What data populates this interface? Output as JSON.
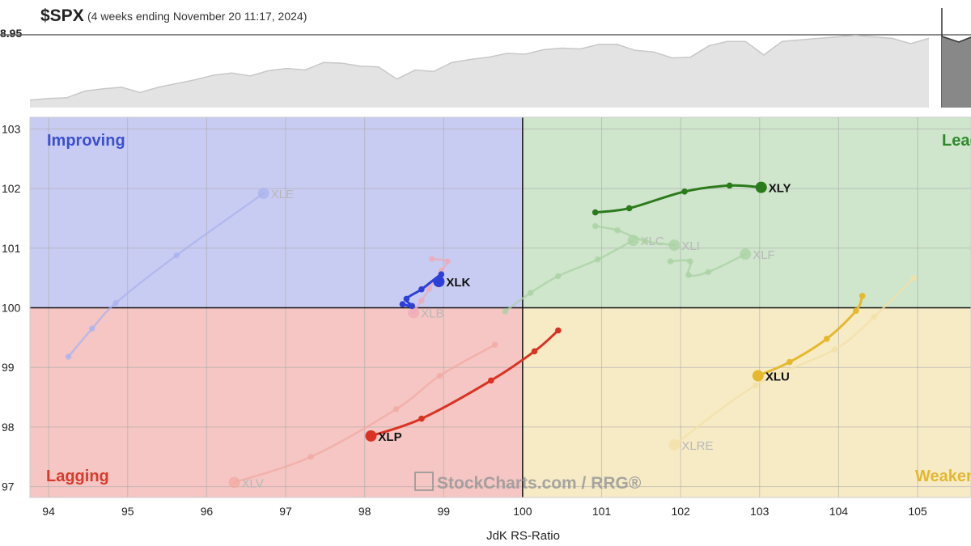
{
  "header": {
    "symbol": "$SPX",
    "period": "(4 weeks ending November 20 11:17, 2024)",
    "price_label": "8.95"
  },
  "watermark": {
    "text": "StockCharts.com / RRG®"
  },
  "colors": {
    "improving_bg": "#c9ccf2",
    "leading_bg": "#cfe5cc",
    "lagging_bg": "#f5c6c3",
    "weakening_bg": "#f7ebc6",
    "improving_label": "#3a4fd1",
    "leading_label": "#2e8a2a",
    "lagging_label": "#d93a2b",
    "weakening_label": "#e2b732"
  },
  "chart_data": [
    {
      "type": "area",
      "title": "$SPX",
      "subtitle": "(4 weeks ending November 20 11:17, 2024)",
      "price_label": "8.95",
      "values": [
        0.1,
        0.12,
        0.13,
        0.22,
        0.25,
        0.27,
        0.2,
        0.27,
        0.32,
        0.37,
        0.43,
        0.46,
        0.42,
        0.49,
        0.52,
        0.5,
        0.6,
        0.59,
        0.55,
        0.54,
        0.38,
        0.5,
        0.48,
        0.6,
        0.64,
        0.67,
        0.72,
        0.71,
        0.77,
        0.79,
        0.78,
        0.84,
        0.84,
        0.76,
        0.74,
        0.66,
        0.67,
        0.82,
        0.88,
        0.88,
        0.7,
        0.88,
        0.9,
        0.92,
        0.94,
        0.96,
        0.94,
        0.92,
        0.85,
        0.92
      ],
      "bar_value": 0.9
    },
    {
      "type": "scatter",
      "xlabel": "JdK RS-Ratio",
      "ylabel": "",
      "xlim": [
        93.7,
        105.7
      ],
      "ylim": [
        96.8,
        103.3
      ],
      "xticks": [
        94,
        95,
        96,
        97,
        98,
        99,
        100,
        101,
        102,
        103,
        104,
        105
      ],
      "yticks": [
        97,
        98,
        99,
        100,
        101,
        102,
        103
      ],
      "quadrants": {
        "improving": "Improving",
        "leading": "Leading",
        "lagging": "Lagging",
        "weakening": "Weakening"
      },
      "series": [
        {
          "name": "XLE",
          "color": "#aab3ee",
          "faded": true,
          "points": [
            [
              94.25,
              99.18
            ],
            [
              94.55,
              99.65
            ],
            [
              94.85,
              100.08
            ],
            [
              95.62,
              100.88
            ],
            [
              96.72,
              101.92
            ]
          ]
        },
        {
          "name": "XLK",
          "color": "#2d3fd6",
          "faded": false,
          "points": [
            [
              98.48,
              100.06
            ],
            [
              98.6,
              100.03
            ],
            [
              98.53,
              100.15
            ],
            [
              98.72,
              100.31
            ],
            [
              98.97,
              100.56
            ],
            [
              98.94,
              100.44
            ]
          ]
        },
        {
          "name": "XLB",
          "color": "#eda9b8",
          "faded": true,
          "points": [
            [
              98.85,
              100.82
            ],
            [
              99.05,
              100.78
            ],
            [
              98.97,
              100.62
            ],
            [
              98.82,
              100.32
            ],
            [
              98.72,
              100.12
            ],
            [
              98.62,
              99.92
            ]
          ]
        },
        {
          "name": "XLY",
          "color": "#2b7a1c",
          "faded": false,
          "points": [
            [
              100.92,
              101.6
            ],
            [
              101.35,
              101.67
            ],
            [
              102.05,
              101.95
            ],
            [
              102.62,
              102.05
            ],
            [
              103.02,
              102.02
            ]
          ]
        },
        {
          "name": "XLC",
          "color": "#a9d2a3",
          "faded": true,
          "points": [
            [
              99.78,
              99.94
            ],
            [
              100.1,
              100.25
            ],
            [
              100.45,
              100.53
            ],
            [
              100.95,
              100.81
            ],
            [
              101.4,
              101.13
            ]
          ]
        },
        {
          "name": "XLI",
          "color": "#a9d2a3",
          "faded": true,
          "points": [
            [
              100.92,
              101.37
            ],
            [
              101.2,
              101.3
            ],
            [
              101.55,
              101.12
            ],
            [
              101.92,
              101.05
            ]
          ]
        },
        {
          "name": "XLF",
          "color": "#a9d2a3",
          "faded": true,
          "points": [
            [
              101.87,
              100.78
            ],
            [
              102.12,
              100.78
            ],
            [
              102.1,
              100.55
            ],
            [
              102.35,
              100.6
            ],
            [
              102.82,
              100.9
            ]
          ]
        },
        {
          "name": "XLU",
          "color": "#e5b92e",
          "faded": false,
          "points": [
            [
              104.3,
              100.2
            ],
            [
              104.22,
              99.95
            ],
            [
              103.85,
              99.48
            ],
            [
              103.38,
              99.09
            ],
            [
              102.98,
              98.86
            ]
          ]
        },
        {
          "name": "XLRE",
          "color": "#f3e0a6",
          "faded": true,
          "points": [
            [
              104.95,
              100.5
            ],
            [
              104.45,
              99.85
            ],
            [
              103.95,
              99.3
            ],
            [
              102.95,
              98.7
            ],
            [
              101.92,
              97.7
            ]
          ]
        },
        {
          "name": "XLP",
          "color": "#d93323",
          "faded": false,
          "points": [
            [
              100.45,
              99.62
            ],
            [
              100.15,
              99.27
            ],
            [
              99.6,
              98.78
            ],
            [
              98.72,
              98.14
            ],
            [
              98.08,
              97.85
            ]
          ]
        },
        {
          "name": "XLV",
          "color": "#f2aaa3",
          "faded": true,
          "points": [
            [
              99.65,
              99.38
            ],
            [
              98.95,
              98.86
            ],
            [
              98.4,
              98.3
            ],
            [
              97.32,
              97.5
            ],
            [
              96.35,
              97.07
            ]
          ]
        }
      ]
    }
  ]
}
